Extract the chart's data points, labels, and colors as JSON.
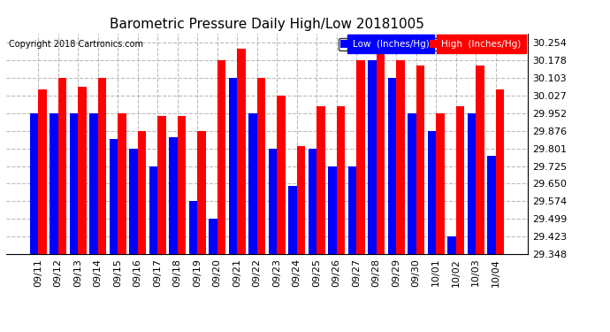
{
  "title": "Barometric Pressure Daily High/Low 20181005",
  "copyright": "Copyright 2018 Cartronics.com",
  "yticks": [
    29.348,
    29.423,
    29.499,
    29.574,
    29.65,
    29.725,
    29.801,
    29.876,
    29.952,
    30.027,
    30.103,
    30.178,
    30.254
  ],
  "ymin": 29.348,
  "ymax": 30.295,
  "dates": [
    "09/11",
    "09/12",
    "09/13",
    "09/14",
    "09/15",
    "09/16",
    "09/17",
    "09/18",
    "09/19",
    "09/20",
    "09/21",
    "09/22",
    "09/23",
    "09/24",
    "09/25",
    "09/26",
    "09/27",
    "09/28",
    "09/29",
    "09/30",
    "10/01",
    "10/02",
    "10/03",
    "10/04"
  ],
  "high": [
    30.055,
    30.103,
    30.065,
    30.103,
    29.952,
    29.876,
    29.94,
    29.94,
    29.876,
    30.178,
    30.23,
    30.103,
    30.027,
    29.81,
    29.98,
    29.98,
    30.178,
    30.254,
    30.178,
    30.155,
    29.952,
    29.98,
    30.155,
    30.055
  ],
  "low": [
    29.952,
    29.952,
    29.952,
    29.952,
    29.84,
    29.801,
    29.725,
    29.85,
    29.574,
    29.499,
    30.103,
    29.952,
    29.801,
    29.64,
    29.801,
    29.725,
    29.725,
    30.178,
    30.103,
    29.952,
    29.876,
    29.423,
    29.952,
    29.77
  ],
  "bar_color_low": "#0000ff",
  "bar_color_high": "#ff0000",
  "background_color": "#ffffff",
  "grid_color": "#aaaaaa",
  "title_fontsize": 11,
  "tick_fontsize": 8,
  "copyright_fontsize": 7,
  "legend_fontsize": 7.5,
  "legend_low_label": "Low  (Inches/Hg)",
  "legend_high_label": "High  (Inches/Hg)"
}
